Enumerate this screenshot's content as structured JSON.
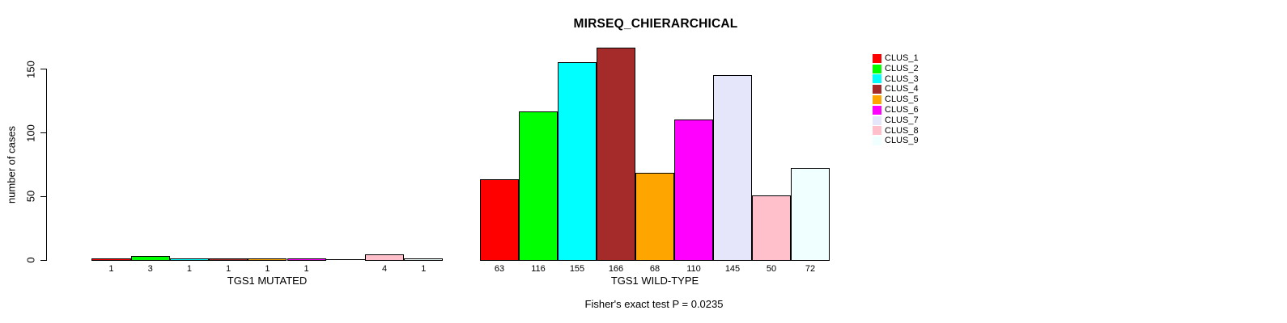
{
  "chart_data": {
    "type": "bar",
    "title": "MIRSEQ_CHIERARCHICAL",
    "ylabel": "number of cases",
    "yticks": [
      0,
      50,
      100,
      150
    ],
    "ylim": [
      0,
      175
    ],
    "grid": false,
    "legend_position": "right",
    "annotation": "Fisher's exact test P = 0.0235",
    "clusters": [
      "CLUS_1",
      "CLUS_2",
      "CLUS_3",
      "CLUS_4",
      "CLUS_5",
      "CLUS_6",
      "CLUS_7",
      "CLUS_8",
      "CLUS_9"
    ],
    "colors": [
      "#FF0000",
      "#00FF00",
      "#00FFFF",
      "#A52A2A",
      "#FFA500",
      "#FF00FF",
      "#E6E6FA",
      "#FFC0CB",
      "#F0FFFF"
    ],
    "panels": [
      {
        "xlabel": "TGS1 MUTATED",
        "values": [
          1,
          3,
          1,
          1,
          1,
          1,
          0,
          4,
          1
        ],
        "bar_labels": [
          "1",
          "3",
          "1",
          "1",
          "1",
          "1",
          "",
          "4",
          "1"
        ]
      },
      {
        "xlabel": "TGS1 WILD-TYPE",
        "values": [
          63,
          116,
          155,
          166,
          68,
          110,
          145,
          50,
          72
        ],
        "bar_labels": [
          "63",
          "116",
          "155",
          "166",
          "68",
          "110",
          "145",
          "50",
          "72"
        ]
      }
    ]
  }
}
